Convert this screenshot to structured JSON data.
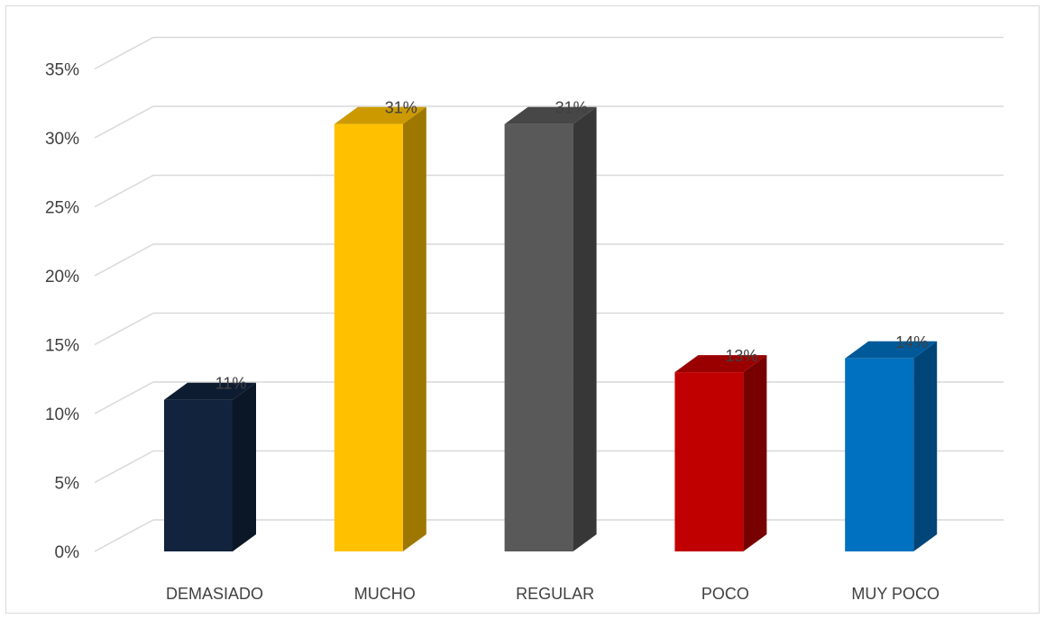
{
  "chart_data": {
    "type": "bar",
    "categories": [
      "DEMASIADO",
      "MUCHO",
      "REGULAR",
      "POCO",
      "MUY POCO"
    ],
    "values": [
      11,
      31,
      31,
      13,
      14
    ],
    "data_labels": [
      "11%",
      "31%",
      "31%",
      "13%",
      "14%"
    ],
    "colors": [
      "#12233d",
      "#ffc000",
      "#595959",
      "#c00000",
      "#0070c0"
    ],
    "y_ticks": [
      "0%",
      "5%",
      "10%",
      "15%",
      "20%",
      "25%",
      "30%",
      "35%"
    ],
    "ylim": [
      0,
      35
    ],
    "grid": true,
    "style": "3d-column"
  }
}
